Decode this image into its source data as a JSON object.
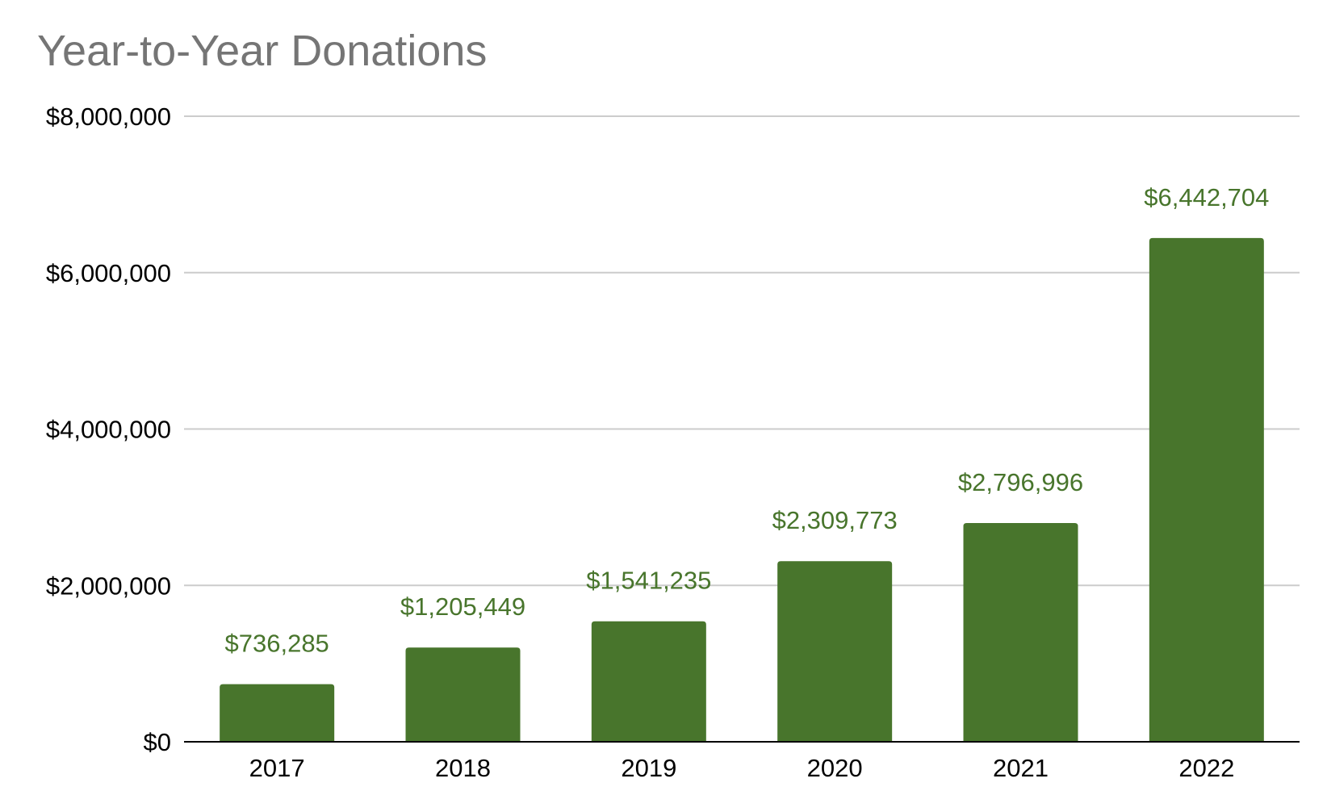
{
  "chart_data": {
    "type": "bar",
    "title": "Year-to-Year Donations",
    "xlabel": "",
    "ylabel": "",
    "categories": [
      "2017",
      "2018",
      "2019",
      "2020",
      "2021",
      "2022"
    ],
    "values": [
      736285,
      1205449,
      1541235,
      2309773,
      2796996,
      6442704
    ],
    "data_labels": [
      "$736,285",
      "$1,205,449",
      "$1,541,235",
      "$2,309,773",
      "$2,796,996",
      "$6,442,704"
    ],
    "ylim": [
      0,
      8000000
    ],
    "y_ticks": [
      0,
      2000000,
      4000000,
      6000000,
      8000000
    ],
    "y_tick_labels": [
      "$0",
      "$2,000,000",
      "$4,000,000",
      "$6,000,000",
      "$8,000,000"
    ],
    "grid": true,
    "legend": "none",
    "colors": {
      "bar": "#48752c",
      "data_label": "#48752c",
      "title": "#757575",
      "gridline": "#cccccc",
      "axis": "#000000"
    }
  }
}
